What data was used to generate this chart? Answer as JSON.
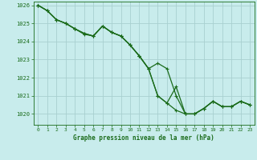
{
  "title": "Graphe pression niveau de la mer (hPa)",
  "bg_color": "#c8ecec",
  "grid_color": "#a8d0d0",
  "line_color": "#1a6b1a",
  "marker_color": "#1a6b1a",
  "xlim": [
    -0.5,
    23.5
  ],
  "ylim": [
    1019.4,
    1026.2
  ],
  "yticks": [
    1020,
    1021,
    1022,
    1023,
    1024,
    1025,
    1026
  ],
  "xticks": [
    0,
    1,
    2,
    3,
    4,
    5,
    6,
    7,
    8,
    9,
    10,
    11,
    12,
    13,
    14,
    15,
    16,
    17,
    18,
    19,
    20,
    21,
    22,
    23
  ],
  "series": [
    [
      1026.0,
      1025.7,
      1025.2,
      1025.0,
      1024.7,
      1024.4,
      1024.3,
      1024.85,
      1024.5,
      1024.3,
      1023.8,
      1023.2,
      1022.5,
      1022.8,
      1022.5,
      1021.0,
      1020.0,
      1020.0,
      1020.3,
      1020.7,
      1020.4,
      1020.4,
      1020.7,
      1020.5
    ],
    [
      1026.0,
      1025.7,
      1025.2,
      1025.0,
      1024.7,
      1024.45,
      1024.3,
      1024.85,
      1024.5,
      1024.3,
      1023.8,
      1023.2,
      1022.5,
      1021.0,
      1020.6,
      1020.2,
      1020.0,
      1020.0,
      1020.3,
      1020.7,
      1020.4,
      1020.4,
      1020.7,
      1020.5
    ],
    [
      1026.0,
      1025.7,
      1025.2,
      1025.0,
      1024.7,
      1024.45,
      1024.3,
      1024.85,
      1024.5,
      1024.3,
      1023.8,
      1023.2,
      1022.5,
      1021.0,
      1020.6,
      1021.5,
      1020.0,
      1020.0,
      1020.3,
      1020.7,
      1020.4,
      1020.4,
      1020.7,
      1020.5
    ]
  ]
}
